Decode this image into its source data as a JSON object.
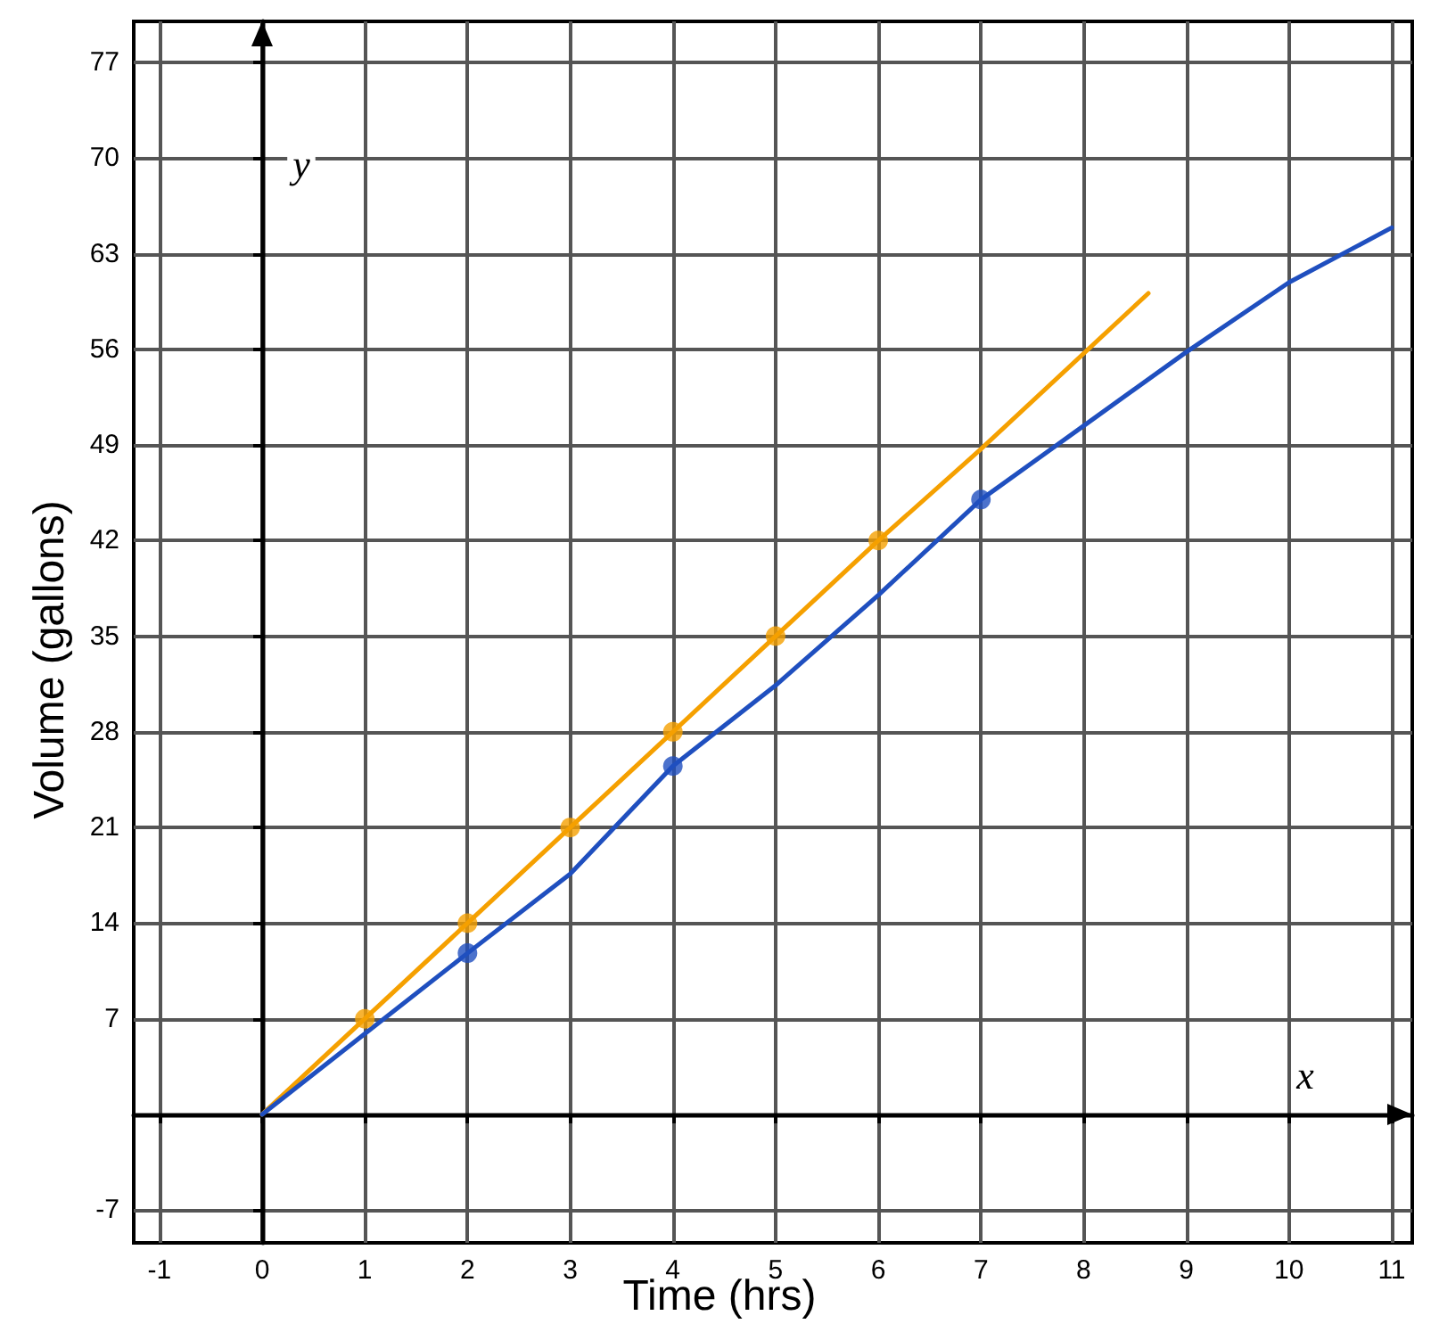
{
  "chart_data": {
    "type": "line",
    "xlabel": "Time (hrs)",
    "ylabel": "Volume (gallons)",
    "annotations": [
      "x",
      "y"
    ],
    "xlim": [
      -1.25,
      11.2
    ],
    "ylim": [
      -9.4,
      80
    ],
    "xticks": [
      -1,
      0,
      1,
      2,
      3,
      4,
      5,
      6,
      7,
      8,
      9,
      10,
      11
    ],
    "yticks": [
      -7,
      7,
      14,
      21,
      28,
      35,
      42,
      49,
      56,
      63,
      70,
      77
    ],
    "grid": true,
    "series": [
      {
        "color": "#f5a000",
        "marker": "none",
        "x": [
          0,
          1,
          2,
          3,
          4,
          5,
          6,
          7,
          8.63
        ],
        "values": [
          0,
          7,
          14,
          21,
          28,
          35,
          42,
          48.7,
          60.1
        ]
      },
      {
        "color": "#1f4fbf",
        "marker": "none",
        "x": [
          0,
          1,
          2,
          3,
          4,
          5,
          6,
          7,
          8,
          9,
          10,
          11
        ],
        "values": [
          0,
          5.9,
          11.8,
          17.6,
          25.5,
          31.4,
          38,
          45,
          50.4,
          55.8,
          60.9,
          64.9
        ]
      },
      {
        "type": "scatter",
        "color": "#f5a000",
        "marker": "circle",
        "x": [
          1,
          2,
          3,
          4,
          5,
          6
        ],
        "values": [
          7,
          14,
          21,
          28,
          35,
          42
        ]
      },
      {
        "type": "scatter",
        "color": "#1f4fbf",
        "marker": "circle",
        "x": [
          2,
          4,
          7
        ],
        "values": [
          11.8,
          25.5,
          45
        ]
      }
    ]
  }
}
